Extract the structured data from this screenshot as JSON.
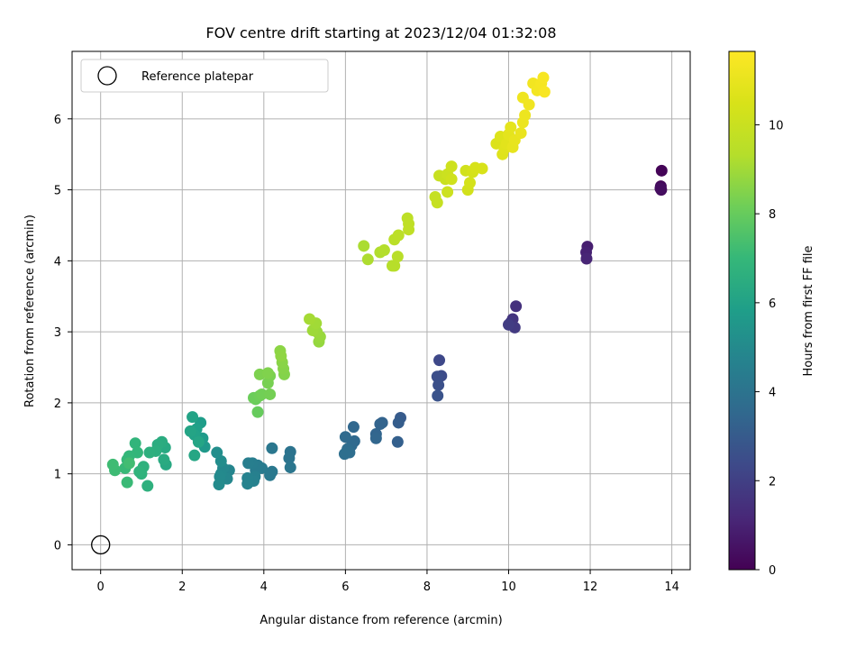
{
  "chart_data": {
    "type": "scatter",
    "title": "FOV centre drift starting at 2023/12/04 01:32:08",
    "xlabel": "Angular distance from reference (arcmin)",
    "ylabel": "Rotation from reference (arcmin)",
    "colorbar_label": "Hours from first FF file",
    "xlim": [
      -0.7,
      14.45
    ],
    "ylim": [
      -0.35,
      6.95
    ],
    "clim": [
      0,
      11.65
    ],
    "xticks": [
      0,
      2,
      4,
      6,
      8,
      10,
      12,
      14
    ],
    "yticks": [
      0,
      1,
      2,
      3,
      4,
      5,
      6
    ],
    "cticks": [
      0,
      2,
      4,
      6,
      8,
      10
    ],
    "grid": true,
    "colormap": "viridis",
    "legend": {
      "label": "Reference platepar",
      "placement": "top-left"
    },
    "reference_point": {
      "x": 0,
      "y": 0
    },
    "points": [
      [
        13.75,
        5.27,
        0.1
      ],
      [
        13.73,
        5.05,
        0.2
      ],
      [
        13.74,
        5.0,
        0.3
      ],
      [
        13.72,
        5.02,
        0.4
      ],
      [
        11.93,
        4.2,
        0.9
      ],
      [
        11.9,
        4.12,
        1.0
      ],
      [
        11.91,
        4.03,
        1.1
      ],
      [
        10.18,
        3.36,
        1.5
      ],
      [
        10.1,
        3.18,
        1.6
      ],
      [
        10.05,
        3.13,
        1.7
      ],
      [
        10.15,
        3.06,
        1.8
      ],
      [
        10.0,
        3.1,
        1.9
      ],
      [
        8.3,
        2.6,
        2.3
      ],
      [
        8.35,
        2.38,
        2.4
      ],
      [
        8.25,
        2.37,
        2.5
      ],
      [
        8.28,
        2.25,
        2.6
      ],
      [
        8.26,
        2.1,
        2.7
      ],
      [
        7.35,
        1.79,
        3.0
      ],
      [
        7.3,
        1.72,
        3.1
      ],
      [
        7.28,
        1.45,
        3.2
      ],
      [
        6.9,
        1.72,
        3.3
      ],
      [
        6.85,
        1.7,
        3.35
      ],
      [
        6.75,
        1.56,
        3.4
      ],
      [
        6.75,
        1.5,
        3.45
      ],
      [
        6.2,
        1.66,
        3.5
      ],
      [
        6.22,
        1.46,
        3.55
      ],
      [
        6.15,
        1.4,
        3.6
      ],
      [
        6.0,
        1.52,
        3.65
      ],
      [
        6.05,
        1.35,
        3.7
      ],
      [
        6.1,
        1.3,
        3.75
      ],
      [
        5.98,
        1.28,
        3.8
      ],
      [
        4.65,
        1.31,
        4.0
      ],
      [
        4.62,
        1.22,
        4.05
      ],
      [
        4.65,
        1.09,
        4.1
      ],
      [
        4.2,
        1.36,
        4.15
      ],
      [
        4.2,
        1.03,
        4.2
      ],
      [
        4.15,
        0.98,
        4.25
      ],
      [
        3.95,
        1.08,
        4.3
      ],
      [
        3.85,
        1.12,
        4.35
      ],
      [
        3.8,
        1.05,
        4.4
      ],
      [
        3.72,
        1.15,
        4.45
      ],
      [
        3.62,
        1.15,
        4.5
      ],
      [
        3.78,
        0.96,
        4.55
      ],
      [
        3.75,
        0.9,
        4.6
      ],
      [
        3.6,
        0.94,
        4.65
      ],
      [
        3.6,
        0.86,
        4.7
      ],
      [
        3.15,
        1.05,
        4.8
      ],
      [
        3.1,
        0.93,
        4.85
      ],
      [
        3.0,
        1.08,
        4.9
      ],
      [
        2.95,
        1.0,
        4.95
      ],
      [
        2.92,
        0.96,
        5.0
      ],
      [
        2.9,
        0.85,
        5.05
      ],
      [
        2.95,
        1.18,
        5.1
      ],
      [
        2.85,
        1.3,
        5.15
      ],
      [
        2.55,
        1.38,
        5.6
      ],
      [
        2.5,
        1.5,
        5.7
      ],
      [
        2.45,
        1.72,
        5.8
      ],
      [
        2.35,
        1.63,
        5.9
      ],
      [
        2.3,
        1.55,
        6.0
      ],
      [
        2.25,
        1.8,
        6.05
      ],
      [
        2.2,
        1.6,
        6.1
      ],
      [
        2.3,
        1.26,
        6.2
      ],
      [
        2.4,
        1.45,
        6.15
      ],
      [
        1.6,
        1.13,
        6.3
      ],
      [
        1.58,
        1.37,
        6.35
      ],
      [
        1.55,
        1.2,
        6.4
      ],
      [
        1.5,
        1.45,
        6.45
      ],
      [
        1.4,
        1.41,
        6.5
      ],
      [
        1.35,
        1.32,
        6.55
      ],
      [
        1.2,
        1.3,
        6.6
      ],
      [
        1.15,
        0.83,
        6.65
      ],
      [
        1.05,
        1.1,
        6.7
      ],
      [
        1.0,
        1.0,
        6.75
      ],
      [
        0.95,
        1.03,
        6.8
      ],
      [
        0.85,
        1.43,
        6.85
      ],
      [
        0.9,
        1.3,
        6.9
      ],
      [
        0.7,
        1.25,
        6.95
      ],
      [
        0.65,
        1.2,
        7.0
      ],
      [
        0.6,
        1.08,
        7.05
      ],
      [
        0.65,
        0.88,
        7.1
      ],
      [
        0.35,
        1.05,
        7.15
      ],
      [
        0.3,
        1.13,
        7.2
      ],
      [
        0.7,
        1.15,
        7.25
      ],
      [
        3.85,
        1.87,
        8.0
      ],
      [
        3.8,
        2.05,
        8.05
      ],
      [
        3.75,
        2.07,
        8.1
      ],
      [
        3.9,
        2.1,
        8.15
      ],
      [
        3.95,
        2.12,
        8.2
      ],
      [
        4.15,
        2.12,
        8.25
      ],
      [
        4.1,
        2.28,
        8.3
      ],
      [
        4.15,
        2.38,
        8.35
      ],
      [
        3.9,
        2.4,
        8.4
      ],
      [
        4.1,
        2.42,
        8.45
      ],
      [
        4.5,
        2.4,
        8.5
      ],
      [
        4.48,
        2.48,
        8.55
      ],
      [
        4.45,
        2.57,
        8.6
      ],
      [
        4.4,
        2.73,
        8.65
      ],
      [
        4.42,
        2.66,
        8.7
      ],
      [
        5.35,
        2.86,
        8.8
      ],
      [
        5.38,
        2.93,
        8.85
      ],
      [
        5.3,
        3.0,
        8.9
      ],
      [
        5.2,
        3.02,
        8.95
      ],
      [
        5.28,
        3.12,
        9.0
      ],
      [
        5.12,
        3.18,
        9.05
      ],
      [
        6.45,
        4.21,
        9.15
      ],
      [
        6.55,
        4.02,
        9.2
      ],
      [
        6.85,
        4.12,
        9.25
      ],
      [
        6.95,
        4.15,
        9.3
      ],
      [
        7.15,
        3.93,
        9.35
      ],
      [
        7.2,
        3.93,
        9.4
      ],
      [
        7.28,
        4.06,
        9.45
      ],
      [
        7.2,
        4.3,
        9.5
      ],
      [
        7.3,
        4.36,
        9.55
      ],
      [
        7.52,
        4.6,
        9.6
      ],
      [
        7.55,
        4.52,
        9.65
      ],
      [
        7.55,
        4.44,
        9.7
      ],
      [
        8.2,
        4.9,
        9.85
      ],
      [
        8.25,
        4.82,
        9.9
      ],
      [
        8.3,
        5.2,
        9.95
      ],
      [
        8.45,
        5.15,
        10.0
      ],
      [
        8.5,
        5.22,
        10.05
      ],
      [
        8.5,
        4.97,
        10.1
      ],
      [
        8.6,
        5.33,
        10.15
      ],
      [
        8.6,
        5.15,
        10.2
      ],
      [
        8.95,
        5.27,
        10.25
      ],
      [
        9.0,
        5.0,
        10.3
      ],
      [
        9.05,
        5.1,
        10.35
      ],
      [
        9.12,
        5.25,
        10.4
      ],
      [
        9.18,
        5.31,
        10.45
      ],
      [
        9.35,
        5.3,
        10.5
      ],
      [
        9.7,
        5.65,
        10.6
      ],
      [
        9.8,
        5.75,
        10.65
      ],
      [
        9.85,
        5.5,
        10.7
      ],
      [
        9.9,
        5.58,
        10.75
      ],
      [
        9.95,
        5.65,
        10.8
      ],
      [
        10.0,
        5.78,
        10.85
      ],
      [
        10.05,
        5.88,
        10.9
      ],
      [
        10.1,
        5.6,
        10.95
      ],
      [
        10.15,
        5.7,
        11.0
      ],
      [
        10.3,
        5.8,
        11.05
      ],
      [
        10.35,
        5.95,
        11.1
      ],
      [
        10.4,
        6.05,
        11.15
      ],
      [
        10.35,
        6.3,
        11.2
      ],
      [
        10.5,
        6.2,
        11.25
      ],
      [
        10.6,
        6.5,
        11.3
      ],
      [
        10.7,
        6.4,
        11.35
      ],
      [
        10.8,
        6.5,
        11.4
      ],
      [
        10.85,
        6.58,
        11.45
      ],
      [
        10.88,
        6.38,
        11.5
      ]
    ]
  }
}
